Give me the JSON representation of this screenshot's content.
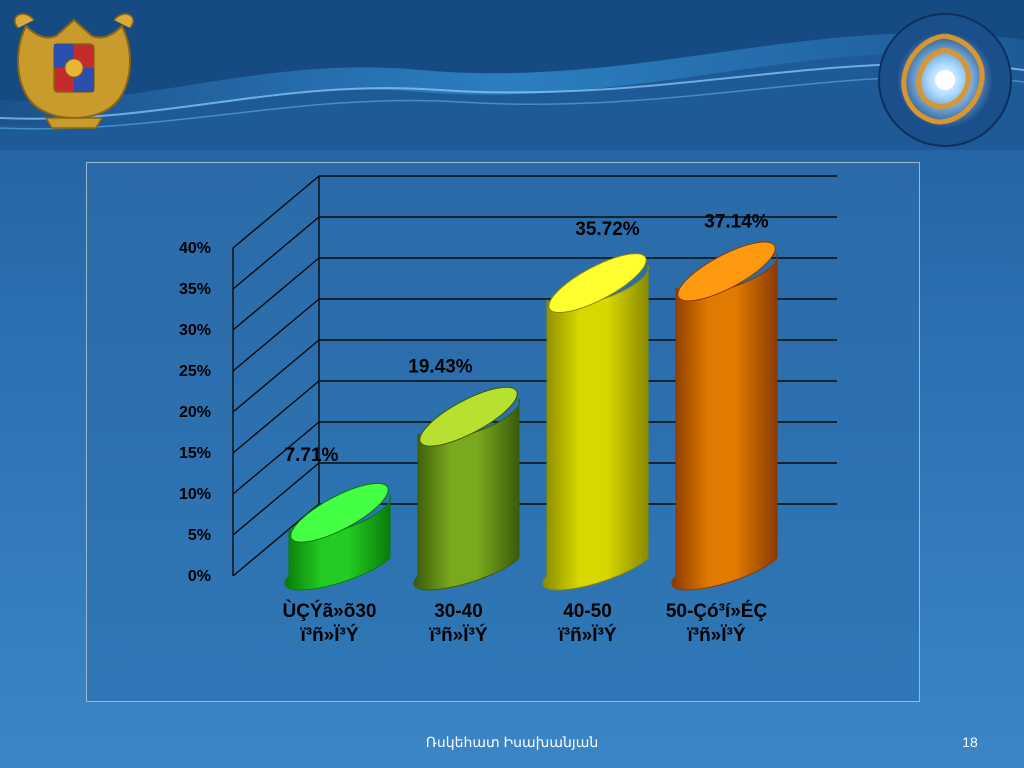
{
  "slide": {
    "author": "Ռսկեհատ Իսախանյան",
    "page_number": "18"
  },
  "colors": {
    "background": "#2a6fb0",
    "bar1": "#22cc22",
    "bar2": "#7aa81e",
    "bar3": "#d8d800",
    "bar4": "#e07a00"
  },
  "chart_data": {
    "type": "bar",
    "categories": [
      [
        "ÙÇÝã»õ30",
        "ï³ñ»Ï³Ý"
      ],
      [
        "30-40",
        "ï³ñ»Ï³Ý"
      ],
      [
        "40-50",
        "ï³ñ»Ï³Ý"
      ],
      [
        "50-Çó³í»ÉÇ",
        "ï³ñ»Ï³Ý"
      ]
    ],
    "values": [
      7.71,
      19.43,
      35.72,
      37.14
    ],
    "data_labels": [
      "7.71%",
      "19.43%",
      "35.72%",
      "37.14%"
    ],
    "ylim": [
      0,
      40
    ],
    "yticks": [
      "0%",
      "5%",
      "10%",
      "15%",
      "20%",
      "25%",
      "30%",
      "35%",
      "40%"
    ],
    "grid": true,
    "style": "3d-cylinder"
  }
}
